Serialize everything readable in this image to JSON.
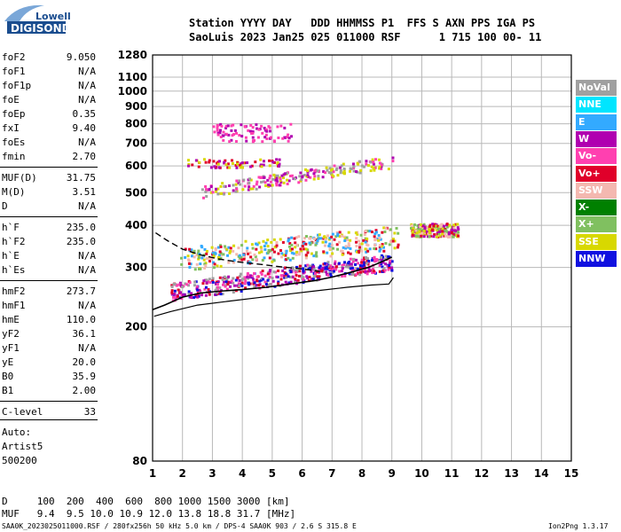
{
  "logo": {
    "line1": "Lowell",
    "line2": "DIGISONDE"
  },
  "header": {
    "row1": "Station YYYY DAY   DDD HHMMSS P1  FFS S AXN PPS IGA PS",
    "row2": "SaoLuis 2023 Jan25 025 011000 RSF      1 715 100 00- 11"
  },
  "params_group1": [
    {
      "k": "foF2",
      "v": "9.050"
    },
    {
      "k": "foF1",
      "v": "N/A"
    },
    {
      "k": "foF1p",
      "v": "N/A"
    },
    {
      "k": "foE",
      "v": "N/A"
    },
    {
      "k": "foEp",
      "v": "0.35"
    },
    {
      "k": "fxI",
      "v": "9.40"
    },
    {
      "k": "foEs",
      "v": "N/A"
    },
    {
      "k": "fmin",
      "v": "2.70"
    }
  ],
  "params_group2": [
    {
      "k": "MUF(D)",
      "v": "31.75"
    },
    {
      "k": "M(D)",
      "v": "3.51"
    },
    {
      "k": "D",
      "v": "N/A"
    }
  ],
  "params_group3": [
    {
      "k": "h`F",
      "v": "235.0"
    },
    {
      "k": "h`F2",
      "v": "235.0"
    },
    {
      "k": "h`E",
      "v": "N/A"
    },
    {
      "k": "h`Es",
      "v": "N/A"
    }
  ],
  "params_group4": [
    {
      "k": "hmF2",
      "v": "273.7"
    },
    {
      "k": "hmF1",
      "v": "N/A"
    },
    {
      "k": "hmE",
      "v": "110.0"
    },
    {
      "k": "yF2",
      "v": "36.1"
    },
    {
      "k": "yF1",
      "v": "N/A"
    },
    {
      "k": "yE",
      "v": "20.0"
    },
    {
      "k": "B0",
      "v": "35.9"
    },
    {
      "k": "B1",
      "v": "2.00"
    }
  ],
  "params_group5": [
    {
      "k": "C-level",
      "v": "33"
    }
  ],
  "auto": {
    "line1": "Auto:",
    "line2": "Artist5",
    "line3": "500200"
  },
  "legend": [
    {
      "label": "NoVal",
      "bg": "#a0a0a0",
      "fg": "#ffffff"
    },
    {
      "label": "NNE",
      "bg": "#00e5ff",
      "fg": "#ffffff"
    },
    {
      "label": "E",
      "bg": "#33aaff",
      "fg": "#ffffff"
    },
    {
      "label": "W",
      "bg": "#b000b0",
      "fg": "#ffffff"
    },
    {
      "label": "Vo-",
      "bg": "#ff40b0",
      "fg": "#ffffff"
    },
    {
      "label": "Vo+",
      "bg": "#e0002a",
      "fg": "#ffffff"
    },
    {
      "label": "SSW",
      "bg": "#f4b8b0",
      "fg": "#ffffff"
    },
    {
      "label": "X-",
      "bg": "#008000",
      "fg": "#ffffff"
    },
    {
      "label": "X+",
      "bg": "#80c060",
      "fg": "#ffffff"
    },
    {
      "label": "SSE",
      "bg": "#d8d800",
      "fg": "#ffffff"
    },
    {
      "label": "NNW",
      "bg": "#1010e0",
      "fg": "#ffffff"
    }
  ],
  "bottom": {
    "d_row": "D     100  200  400  600  800 1000 1500 3000 [km]",
    "muf_row": "MUF   9.4  9.5 10.0 10.9 12.0 13.8 18.8 31.7 [MHz]"
  },
  "footer": {
    "left": "SAA0K_2023025011000.RSF / 280fx256h 50 kHz 5.0 km / DPS-4 SAA0K 903 / 2.6 S 315.8 E",
    "right": "Ion2Png 1.3.17"
  },
  "chart_data": {
    "type": "scatter",
    "xlim": [
      1,
      15
    ],
    "ylim": [
      80,
      1280
    ],
    "y_scale": "log",
    "xticks": [
      1,
      2,
      3,
      4,
      5,
      6,
      7,
      8,
      9,
      10,
      11,
      12,
      13,
      14,
      15
    ],
    "yticks": [
      80,
      200,
      300,
      400,
      500,
      600,
      700,
      800,
      900,
      1000,
      1100,
      1280
    ],
    "grid": true,
    "profile": {
      "x": [
        1.05,
        1.6,
        2.5,
        3.5,
        4.5,
        5.5,
        6.5,
        7.5,
        8.3,
        8.9,
        9.05
      ],
      "y": [
        215,
        222,
        232,
        238,
        244,
        250,
        256,
        262,
        266,
        268,
        280
      ]
    },
    "trace_f": {
      "x": [
        1.0,
        1.4,
        2.0,
        2.6,
        3.2,
        4.0,
        4.8,
        5.6,
        6.4,
        7.0,
        7.6,
        8.2,
        8.6,
        9.0
      ],
      "y": [
        225,
        232,
        245,
        252,
        255,
        258,
        262,
        268,
        274,
        281,
        290,
        300,
        310,
        322
      ]
    },
    "trace_dashed": {
      "x": [
        1.1,
        1.5,
        2.0,
        2.6,
        3.2,
        3.8,
        4.4,
        5.2,
        6.0,
        6.6
      ],
      "y": [
        380,
        360,
        340,
        327,
        318,
        312,
        308,
        302,
        297,
        292
      ]
    }
  }
}
